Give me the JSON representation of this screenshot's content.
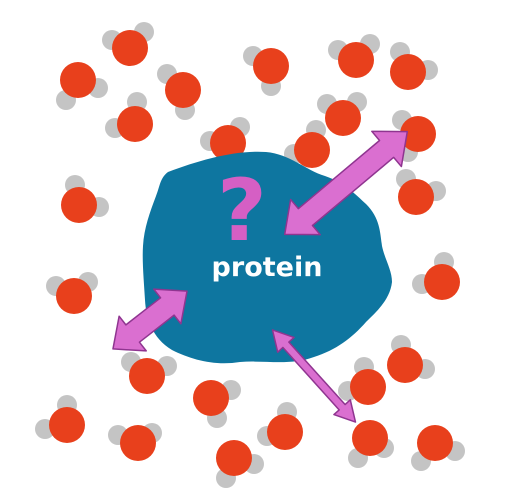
{
  "protein_label": "protein",
  "question_mark": "?",
  "colors": {
    "background": "#ffffff",
    "oxygen": "#e8401c",
    "hydrogen": "#c4c4c4",
    "protein": "#0e76a0",
    "arrow_fill": "#da6fd0",
    "arrow_stroke": "#8f3590",
    "question": "#d55fc4",
    "label": "#ffffff"
  }
}
